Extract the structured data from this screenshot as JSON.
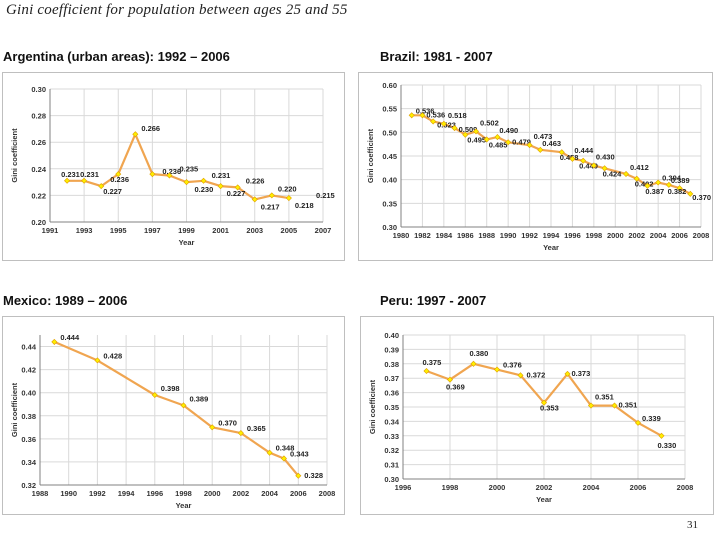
{
  "slide_title": "Gini coefficient for population between ages 25 and 55",
  "page_number": "31",
  "colors": {
    "line": "#f0a550",
    "marker": "#ffee00",
    "grid": "#d9d9d9",
    "panel_border": "#bfbfbf"
  },
  "chart_data": [
    {
      "type": "line",
      "title": "Argentina (urban areas): 1992 – 2006",
      "xlabel": "Year",
      "ylabel": "Gini coefficient",
      "xlim": [
        1991,
        2007
      ],
      "ylim": [
        0.2,
        0.3
      ],
      "x_ticks": [
        "1991",
        "1993",
        "1995",
        "1997",
        "1999",
        "2001",
        "2003",
        "2005",
        "2007"
      ],
      "y_ticks": [
        "0.30",
        "0.28",
        "0.26",
        "0.24",
        "0.22",
        "0.20"
      ],
      "x": [
        1992,
        1993,
        1994,
        1995,
        1996,
        1997,
        1998,
        1999,
        2000,
        2001,
        2002,
        2003,
        2004,
        2005,
        2006
      ],
      "values": [
        0.231,
        0.231,
        0.227,
        0.236,
        0.266,
        0.236,
        0.235,
        0.23,
        0.231,
        0.227,
        0.226,
        0.217,
        0.22,
        0.218,
        0.215
      ],
      "data_labels": [
        "0.231",
        "0.231",
        "0.227",
        "0.236",
        "0.266",
        "0.236",
        "0.235",
        "0.230",
        "0.231",
        "0.227",
        "0.226",
        "0.217",
        "0.220",
        "0.218",
        "0.215"
      ],
      "line_points": 14
    },
    {
      "type": "line",
      "title": "Brazil: 1981 - 2007",
      "xlabel": "Year",
      "ylabel": "Gini coefficient",
      "xlim": [
        1980,
        2008
      ],
      "ylim": [
        0.3,
        0.6
      ],
      "x_ticks": [
        "1980",
        "1982",
        "1984",
        "1986",
        "1988",
        "1990",
        "1992",
        "1994",
        "1996",
        "1998",
        "2000",
        "2002",
        "2004",
        "2006",
        "2008"
      ],
      "y_ticks": [
        "0.60",
        "0.55",
        "0.50",
        "0.45",
        "0.40",
        "0.35",
        "0.30"
      ],
      "x": [
        1981,
        1982,
        1983,
        1984,
        1985,
        1986,
        1987,
        1988,
        1989,
        1990,
        1992,
        1993,
        1995,
        1996,
        1997,
        1998,
        1999,
        2001,
        2002,
        2003,
        2004,
        2005,
        2006,
        2007
      ],
      "values": [
        0.536,
        0.536,
        0.523,
        0.518,
        0.509,
        0.495,
        0.502,
        0.485,
        0.49,
        0.479,
        0.473,
        0.463,
        0.458,
        0.444,
        0.44,
        0.43,
        0.424,
        0.412,
        0.402,
        0.387,
        0.394,
        0.389,
        0.382,
        0.37
      ],
      "data_labels": [
        "0.536",
        "0.536",
        "0.523",
        "0.518",
        "0.509",
        "0.495",
        "0.502",
        "0.485",
        "0.490",
        "0.479",
        "0.473",
        "0.463",
        "0.458",
        "0.444",
        "0.440",
        "0.430",
        "0.424",
        "0.412",
        "0.402",
        "0.387",
        "0.394",
        "0.389",
        "0.382",
        "0.370"
      ]
    },
    {
      "type": "line",
      "title": "Mexico: 1989 – 2006",
      "xlabel": "Year",
      "ylabel": "Gini coefficient",
      "xlim": [
        1988,
        2008
      ],
      "ylim": [
        0.32,
        0.45
      ],
      "x_ticks": [
        "1988",
        "1990",
        "1992",
        "1994",
        "1996",
        "1998",
        "2000",
        "2002",
        "2004",
        "2006",
        "2008"
      ],
      "y_ticks": [
        "0.44",
        "0.42",
        "0.40",
        "0.38",
        "0.36",
        "0.34",
        "0.32"
      ],
      "x": [
        1989,
        1992,
        1996,
        1998,
        2000,
        2002,
        2004,
        2005,
        2006
      ],
      "values": [
        0.444,
        0.428,
        0.398,
        0.389,
        0.37,
        0.365,
        0.348,
        0.343,
        0.328
      ],
      "data_labels": [
        "0.444",
        "0.428",
        "0.398",
        "0.389",
        "0.370",
        "0.365",
        "0.348",
        "0.343",
        "0.328"
      ]
    },
    {
      "type": "line",
      "title": "Peru: 1997 - 2007",
      "xlabel": "Year",
      "ylabel": "Gini coefficient",
      "xlim": [
        1996,
        2008
      ],
      "ylim": [
        0.3,
        0.4
      ],
      "x_ticks": [
        "1996",
        "1998",
        "2000",
        "2002",
        "2004",
        "2006",
        "2008"
      ],
      "y_ticks": [
        "0.40",
        "0.39",
        "0.38",
        "0.37",
        "0.36",
        "0.35",
        "0.34",
        "0.33",
        "0.32",
        "0.31",
        "0.30"
      ],
      "x": [
        1997,
        1998,
        1999,
        2000,
        2001,
        2002,
        2003,
        2004,
        2005,
        2006,
        2007
      ],
      "values": [
        0.375,
        0.369,
        0.38,
        0.376,
        0.372,
        0.353,
        0.373,
        0.351,
        0.351,
        0.339,
        0.33
      ],
      "data_labels": [
        "0.375",
        "0.369",
        "0.380",
        "0.376",
        "0.372",
        "0.353",
        "0.373",
        "0.351",
        "0.351",
        "0.339",
        "0.330"
      ]
    }
  ]
}
